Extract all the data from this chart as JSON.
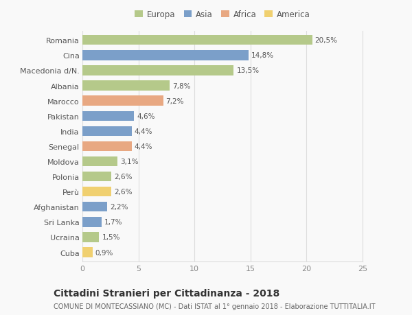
{
  "categories": [
    "Romania",
    "Cina",
    "Macedonia d/N.",
    "Albania",
    "Marocco",
    "Pakistan",
    "India",
    "Senegal",
    "Moldova",
    "Polonia",
    "Perù",
    "Afghanistan",
    "Sri Lanka",
    "Ucraina",
    "Cuba"
  ],
  "values": [
    20.5,
    14.8,
    13.5,
    7.8,
    7.2,
    4.6,
    4.4,
    4.4,
    3.1,
    2.6,
    2.6,
    2.2,
    1.7,
    1.5,
    0.9
  ],
  "labels": [
    "20,5%",
    "14,8%",
    "13,5%",
    "7,8%",
    "7,2%",
    "4,6%",
    "4,4%",
    "4,4%",
    "3,1%",
    "2,6%",
    "2,6%",
    "2,2%",
    "1,7%",
    "1,5%",
    "0,9%"
  ],
  "continents": [
    "Europa",
    "Asia",
    "Europa",
    "Europa",
    "Africa",
    "Asia",
    "Asia",
    "Africa",
    "Europa",
    "Europa",
    "America",
    "Asia",
    "Asia",
    "Europa",
    "America"
  ],
  "colors": {
    "Europa": "#b5c98a",
    "Asia": "#7b9fc9",
    "Africa": "#e8a882",
    "America": "#f0d070"
  },
  "legend_labels": [
    "Europa",
    "Asia",
    "Africa",
    "America"
  ],
  "legend_colors": [
    "#b5c98a",
    "#7b9fc9",
    "#e8a882",
    "#f0d070"
  ],
  "xlim": [
    0,
    25
  ],
  "xticks": [
    0,
    5,
    10,
    15,
    20,
    25
  ],
  "title": "Cittadini Stranieri per Cittadinanza - 2018",
  "subtitle": "COMUNE DI MONTECASSIANO (MC) - Dati ISTAT al 1° gennaio 2018 - Elaborazione TUTTITALIA.IT",
  "background_color": "#f9f9f9",
  "grid_color": "#dddddd",
  "bar_height": 0.65,
  "label_fontsize": 7.5,
  "ytick_fontsize": 8,
  "xtick_fontsize": 8,
  "title_fontsize": 10,
  "subtitle_fontsize": 7,
  "legend_fontsize": 8.5
}
